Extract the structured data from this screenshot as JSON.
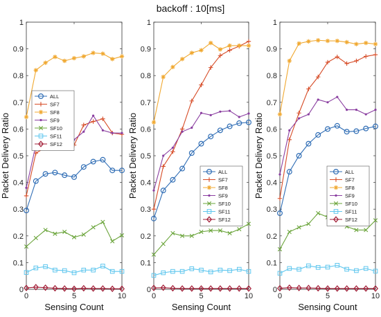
{
  "figure_title": "backoff : 10[ms]",
  "series_styles": [
    {
      "name": "ALL",
      "color": "#2f6db5",
      "marker": "circle"
    },
    {
      "name": "SF7",
      "color": "#d64a25",
      "marker": "plus"
    },
    {
      "name": "SF8",
      "color": "#f0a830",
      "marker": "asterisk"
    },
    {
      "name": "SF9",
      "color": "#8a3ea0",
      "marker": "dot"
    },
    {
      "name": "SF10",
      "color": "#6aa43a",
      "marker": "x"
    },
    {
      "name": "SF11",
      "color": "#5ec6ee",
      "marker": "square"
    },
    {
      "name": "SF12",
      "color": "#a11b34",
      "marker": "diamond"
    }
  ],
  "chart_data": [
    {
      "type": "line",
      "xlabel": "Sensing Count",
      "ylabel": "Packet Delivery Ratio",
      "xlim": [
        0,
        10
      ],
      "ylim": [
        0,
        1
      ],
      "xticks": [
        0,
        5,
        10
      ],
      "yticks": [
        0,
        0.1,
        0.2,
        0.3,
        0.4,
        0.5,
        0.6,
        0.7,
        0.8,
        0.9,
        1
      ],
      "legend": "middle-left",
      "x": [
        0,
        1,
        2,
        3,
        4,
        5,
        6,
        7,
        8,
        9,
        10
      ],
      "series": [
        {
          "name": "ALL",
          "values": [
            0.295,
            0.405,
            0.432,
            0.437,
            0.427,
            0.42,
            0.458,
            0.478,
            0.485,
            0.445,
            0.445
          ]
        },
        {
          "name": "SF7",
          "values": [
            0.35,
            0.51,
            0.53,
            0.562,
            0.54,
            0.54,
            0.615,
            0.628,
            0.638,
            0.585,
            0.58
          ]
        },
        {
          "name": "SF8",
          "values": [
            0.645,
            0.82,
            0.848,
            0.87,
            0.855,
            0.865,
            0.872,
            0.885,
            0.882,
            0.862,
            0.872
          ]
        },
        {
          "name": "SF9",
          "values": [
            0.38,
            0.54,
            0.575,
            0.575,
            0.545,
            0.56,
            0.59,
            0.65,
            0.595,
            0.585,
            0.585
          ]
        },
        {
          "name": "SF10",
          "values": [
            0.16,
            0.192,
            0.222,
            0.208,
            0.215,
            0.195,
            0.205,
            0.232,
            0.252,
            0.18,
            0.202
          ]
        },
        {
          "name": "SF11",
          "values": [
            0.063,
            0.08,
            0.085,
            0.072,
            0.07,
            0.062,
            0.072,
            0.072,
            0.087,
            0.067,
            0.067
          ]
        },
        {
          "name": "SF12",
          "values": [
            0.005,
            0.008,
            0.006,
            0.004,
            0.003,
            0.002,
            0.004,
            0.003,
            0.003,
            0.002,
            0.002
          ]
        }
      ]
    },
    {
      "type": "line",
      "xlabel": "Sensing Count",
      "ylabel": "Packet Delivery Ratio",
      "xlim": [
        0,
        10
      ],
      "ylim": [
        0,
        1
      ],
      "xticks": [
        0,
        5,
        10
      ],
      "yticks": [
        0,
        0.1,
        0.2,
        0.3,
        0.4,
        0.5,
        0.6,
        0.7,
        0.8,
        0.9,
        1
      ],
      "legend": "middle-right",
      "x": [
        0,
        1,
        2,
        3,
        4,
        5,
        6,
        7,
        8,
        9,
        10
      ],
      "series": [
        {
          "name": "ALL",
          "values": [
            0.265,
            0.37,
            0.41,
            0.452,
            0.51,
            0.545,
            0.572,
            0.595,
            0.61,
            0.622,
            0.625
          ]
        },
        {
          "name": "SF7",
          "values": [
            0.3,
            0.46,
            0.515,
            0.6,
            0.705,
            0.765,
            0.83,
            0.875,
            0.895,
            0.91,
            0.928
          ]
        },
        {
          "name": "SF8",
          "values": [
            0.625,
            0.795,
            0.832,
            0.862,
            0.885,
            0.895,
            0.922,
            0.898,
            0.912,
            0.912,
            0.912
          ]
        },
        {
          "name": "SF9",
          "values": [
            0.37,
            0.5,
            0.53,
            0.59,
            0.605,
            0.66,
            0.652,
            0.665,
            0.668,
            0.645,
            0.658
          ]
        },
        {
          "name": "SF10",
          "values": [
            0.13,
            0.17,
            0.21,
            0.2,
            0.2,
            0.215,
            0.22,
            0.22,
            0.21,
            0.225,
            0.245
          ]
        },
        {
          "name": "SF11",
          "values": [
            0.052,
            0.062,
            0.067,
            0.067,
            0.077,
            0.072,
            0.065,
            0.072,
            0.07,
            0.075,
            0.067
          ]
        },
        {
          "name": "SF12",
          "values": [
            0.005,
            0.006,
            0.004,
            0.003,
            0.003,
            0.003,
            0.003,
            0.003,
            0.003,
            0.003,
            0.003
          ]
        }
      ]
    },
    {
      "type": "line",
      "xlabel": "Sensing Count",
      "ylabel": "Packet Delivery Ratio",
      "xlim": [
        0,
        10
      ],
      "ylim": [
        0,
        1
      ],
      "xticks": [
        0,
        5,
        10
      ],
      "yticks": [
        0,
        0.1,
        0.2,
        0.3,
        0.4,
        0.5,
        0.6,
        0.7,
        0.8,
        0.9,
        1
      ],
      "legend": "middle-right",
      "x": [
        0,
        1,
        2,
        3,
        4,
        5,
        6,
        7,
        8,
        9,
        10
      ],
      "series": [
        {
          "name": "ALL",
          "values": [
            0.285,
            0.44,
            0.5,
            0.545,
            0.578,
            0.6,
            0.612,
            0.59,
            0.592,
            0.602,
            0.61
          ]
        },
        {
          "name": "SF7",
          "values": [
            0.34,
            0.56,
            0.66,
            0.75,
            0.795,
            0.85,
            0.87,
            0.845,
            0.855,
            0.872,
            0.878
          ]
        },
        {
          "name": "SF8",
          "values": [
            0.655,
            0.855,
            0.92,
            0.928,
            0.932,
            0.93,
            0.93,
            0.925,
            0.918,
            0.922,
            0.918
          ]
        },
        {
          "name": "SF9",
          "values": [
            0.43,
            0.595,
            0.64,
            0.655,
            0.71,
            0.7,
            0.72,
            0.672,
            0.672,
            0.655,
            0.672
          ]
        },
        {
          "name": "SF10",
          "values": [
            0.15,
            0.215,
            0.232,
            0.245,
            0.285,
            0.27,
            0.265,
            0.235,
            0.222,
            0.222,
            0.258
          ]
        },
        {
          "name": "SF11",
          "values": [
            0.06,
            0.078,
            0.075,
            0.088,
            0.082,
            0.083,
            0.09,
            0.075,
            0.07,
            0.078,
            0.068
          ]
        },
        {
          "name": "SF12",
          "values": [
            0.004,
            0.006,
            0.005,
            0.005,
            0.004,
            0.003,
            0.003,
            0.003,
            0.003,
            0.003,
            0.003
          ]
        }
      ]
    }
  ]
}
